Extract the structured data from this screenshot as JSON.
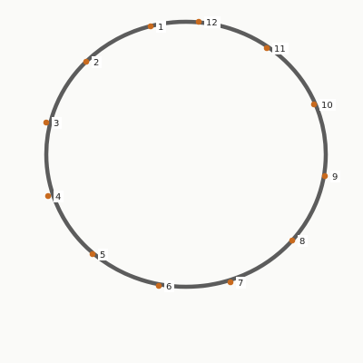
{
  "ring": {
    "stroke": "#5c5c5c"
  },
  "points": [
    {
      "label": "1",
      "color": "#c86a1e"
    },
    {
      "label": "2",
      "color": "#c86a1e"
    },
    {
      "label": "3",
      "color": "#c86a1e"
    },
    {
      "label": "4",
      "color": "#c86a1e"
    },
    {
      "label": "5",
      "color": "#c86a1e"
    },
    {
      "label": "6",
      "color": "#c86a1e"
    },
    {
      "label": "7",
      "color": "#c86a1e"
    },
    {
      "label": "8",
      "color": "#c86a1e"
    },
    {
      "label": "9",
      "color": "#c86a1e"
    },
    {
      "label": "10",
      "color": "#c86a1e"
    },
    {
      "label": "11",
      "color": "#c86a1e"
    },
    {
      "label": "12",
      "color": "#c86a1e"
    }
  ]
}
